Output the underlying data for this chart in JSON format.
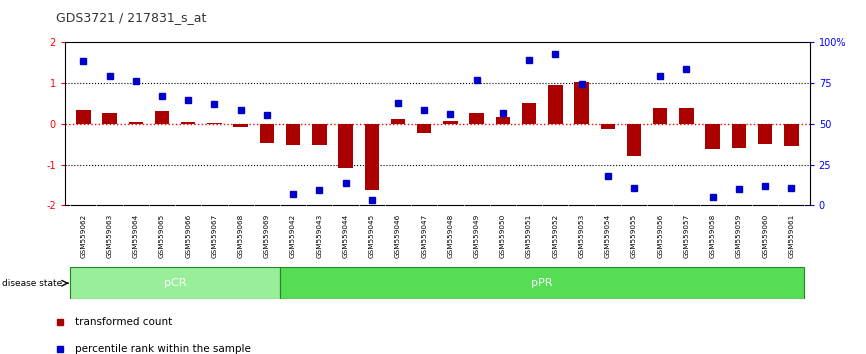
{
  "title": "GDS3721 / 217831_s_at",
  "samples": [
    "GSM559062",
    "GSM559063",
    "GSM559064",
    "GSM559065",
    "GSM559066",
    "GSM559067",
    "GSM559068",
    "GSM559069",
    "GSM559042",
    "GSM559043",
    "GSM559044",
    "GSM559045",
    "GSM559046",
    "GSM559047",
    "GSM559048",
    "GSM559049",
    "GSM559050",
    "GSM559051",
    "GSM559052",
    "GSM559053",
    "GSM559054",
    "GSM559055",
    "GSM559056",
    "GSM559057",
    "GSM559058",
    "GSM559059",
    "GSM559060",
    "GSM559061"
  ],
  "red_bars": [
    0.35,
    0.28,
    0.05,
    0.32,
    0.05,
    0.02,
    -0.08,
    -0.48,
    -0.52,
    -0.52,
    -1.08,
    -1.62,
    0.12,
    -0.22,
    0.06,
    0.28,
    0.18,
    0.52,
    0.95,
    1.02,
    -0.12,
    -0.78,
    0.38,
    0.38,
    -0.62,
    -0.6,
    -0.5,
    -0.55
  ],
  "blue_dots": [
    1.55,
    1.18,
    1.05,
    0.68,
    0.58,
    0.48,
    0.35,
    0.22,
    -1.72,
    -1.62,
    -1.45,
    -1.88,
    0.52,
    0.35,
    0.25,
    1.08,
    0.28,
    1.58,
    1.72,
    0.98,
    -1.28,
    -1.58,
    1.18,
    1.35,
    -1.8,
    -1.6,
    -1.52,
    -1.58
  ],
  "pCR_count": 8,
  "pPR_count": 20,
  "pCR_color": "#99EE99",
  "pPR_color": "#55DD55",
  "ylim": [
    -2,
    2
  ],
  "y2_ticks": [
    0,
    25,
    50,
    75,
    100
  ],
  "y2_labels": [
    "0",
    "25",
    "50",
    "75",
    "100%"
  ],
  "bar_color": "#AA0000",
  "dot_color": "#0000CC",
  "title_color": "#333333",
  "gray_bg": "#C8C8C8"
}
